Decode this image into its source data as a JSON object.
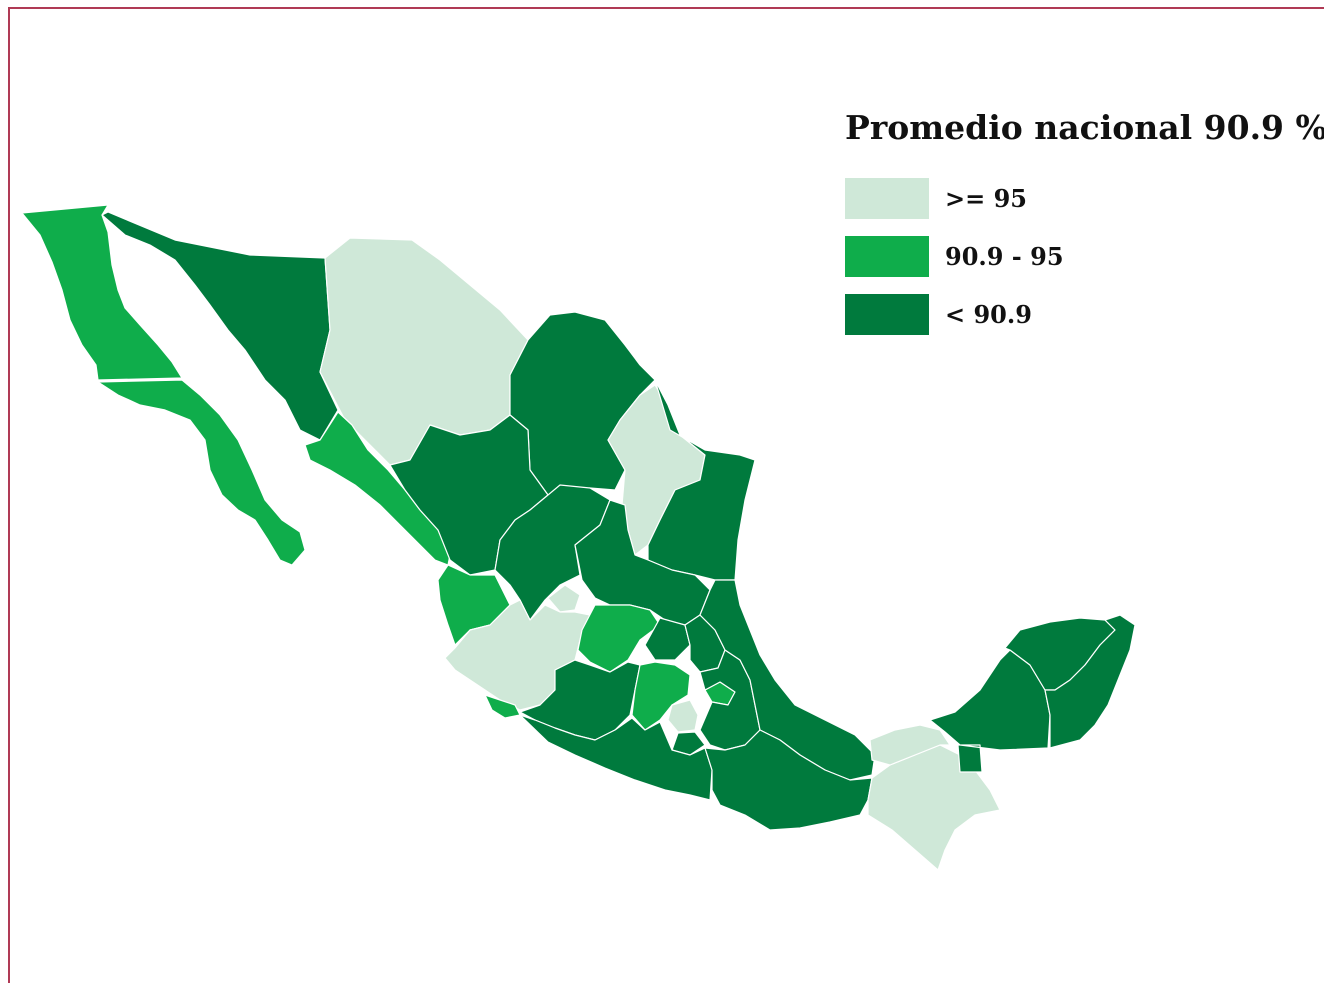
{
  "legend": {
    "title": "Promedio nacional 90.9 %",
    "items": [
      {
        "label": ">= 95",
        "color": "#cfe8d8"
      },
      {
        "label": "90.9 - 95",
        "color": "#0fad4b"
      },
      {
        "label": "< 90.9",
        "color": "#007a3d"
      }
    ]
  },
  "colors": {
    "frame": "#b03a55",
    "high": "#cfe8d8",
    "mid": "#0fad4b",
    "low": "#007a3d",
    "border": "#ffffff"
  }
}
